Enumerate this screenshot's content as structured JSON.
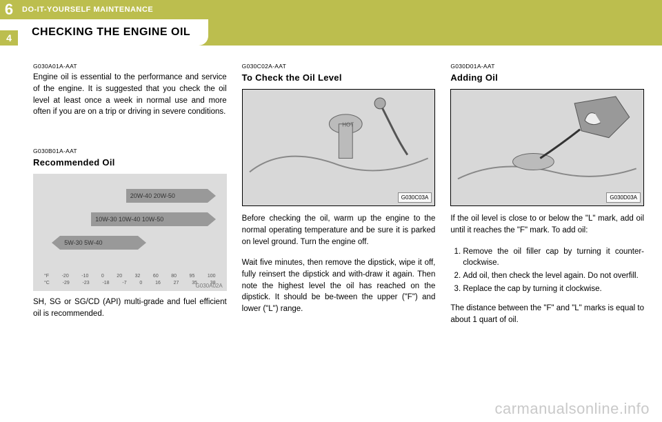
{
  "header": {
    "chapter_number": "6",
    "chapter_title": "DO-IT-YOURSELF MAINTENANCE",
    "page_number": "4",
    "section_heading": "CHECKING THE ENGINE OIL"
  },
  "col1": {
    "intro_code": "G030A01A-AAT",
    "intro_text": "Engine oil is essential to the performance and service of the engine. It is suggested that you check the oil level at least once a week in normal use and more often if you are on a trip or driving in severe conditions.",
    "rec_code": "G030B01A-AAT",
    "rec_title": "Recommended Oil",
    "chart": {
      "rows": [
        {
          "label": "20W-40 20W-50",
          "left_pct": 48,
          "width_pct": 42
        },
        {
          "label": "10W-30 10W-40 10W-50",
          "left_pct": 30,
          "width_pct": 60
        },
        {
          "label": "5W-30 5W-40",
          "left_pct": 14,
          "width_pct": 40,
          "reverse": true
        }
      ],
      "scale_f": [
        "°F",
        "-20",
        "-10",
        "0",
        "20",
        "32",
        "60",
        "80",
        "95",
        "100"
      ],
      "scale_c": [
        "°C",
        "-29",
        "-23",
        "-18",
        "-7",
        "0",
        "16",
        "27",
        "35",
        "38"
      ],
      "img_code": "G030A02A"
    },
    "rec_caption": "SH, SG or SG/CD (API) multi-grade and fuel efficient oil is recommended."
  },
  "col2": {
    "code": "G030C02A-AAT",
    "title": "To Check the Oil Level",
    "img_code": "G030C03A",
    "p1": "Before checking the oil, warm up the engine to the normal operating temperature and be sure it is parked on level ground. Turn the engine off.",
    "p2": "Wait five minutes, then remove the dipstick, wipe it off, fully reinsert the dipstick and with-draw it again. Then note the highest level the oil has reached on the dipstick. It should be be-tween the upper (\"F\") and lower (\"L\") range."
  },
  "col3": {
    "code": "G030D01A-AAT",
    "title": "Adding Oil",
    "img_code": "G030D03A",
    "p1": "If the oil level is close to or below the \"L\" mark, add oil until it reaches the \"F\" mark. To add oil:",
    "steps": [
      "Remove the oil filler cap by turning it counter-clockwise.",
      "Add oil, then check the level again. Do not overfill.",
      "Replace the cap by turning it clockwise."
    ],
    "p2": "The distance between the \"F\" and \"L\" marks is equal to about 1 quart of oil."
  },
  "watermark": "carmanualsonline.info"
}
